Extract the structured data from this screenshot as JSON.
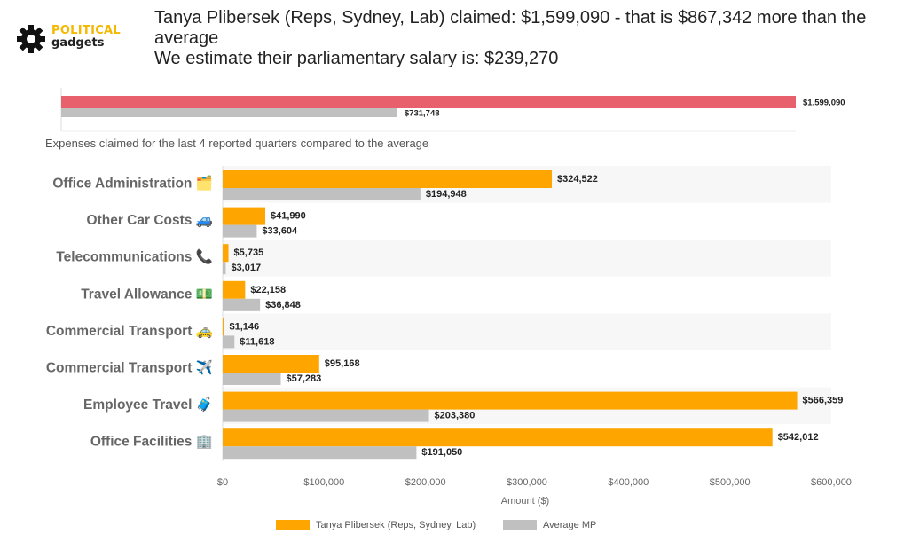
{
  "brand": {
    "line1": "POLITICAL",
    "line2": "gadgets",
    "icon": "gear-icon"
  },
  "headline": {
    "line1": "Tanya Plibersek (Reps, Sydney, Lab) claimed: $1,599,090 - that is $867,342 more than the average",
    "line2": "We estimate their parliamentary salary is: $239,270"
  },
  "subtitle": "Expenses claimed for the last 4 reported quarters compared to the average",
  "colors": {
    "member": "#ffa500",
    "average": "#c0c0c0",
    "total_member": "#e8606c",
    "stripe": "#f7f7f7"
  },
  "chart_data": [
    {
      "type": "bar",
      "orientation": "horizontal",
      "series": [
        {
          "values": [
            1599090
          ],
          "labels": [
            "$1,599,090"
          ]
        },
        {
          "values": [
            731748
          ],
          "labels": [
            "$731,748"
          ]
        }
      ]
    },
    {
      "type": "bar",
      "orientation": "horizontal",
      "categories": [
        "Office Administration 🗂️",
        "Other Car Costs 🚙",
        "Telecommunications 📞",
        "Travel Allowance 💵",
        "Commercial Transport 🚕",
        "Commercial Transport ✈️",
        "Employee Travel 🧳",
        "Office Facilities 🏢"
      ],
      "series": [
        {
          "name": "Tanya Plibersek  (Reps, Sydney, Lab)",
          "values": [
            324522,
            41990,
            5735,
            22158,
            1146,
            95168,
            566359,
            542012
          ],
          "labels": [
            "$324,522",
            "$41,990",
            "$5,735",
            "$22,158",
            "$1,146",
            "$95,168",
            "$566,359",
            "$542,012"
          ]
        },
        {
          "name": "Average MP",
          "values": [
            194948,
            33604,
            3017,
            36848,
            11618,
            57283,
            203380,
            191050
          ],
          "labels": [
            "$194,948",
            "$33,604",
            "$3,017",
            "$36,848",
            "$11,618",
            "$57,283",
            "$203,380",
            "$191,050"
          ]
        }
      ],
      "xlabel": "Amount ($)",
      "xlim": [
        0,
        600000
      ],
      "xticks": [
        "$0",
        "$100,000",
        "$200,000",
        "$300,000",
        "$400,000",
        "$500,000",
        "$600,000"
      ],
      "legend": "bottom"
    }
  ]
}
